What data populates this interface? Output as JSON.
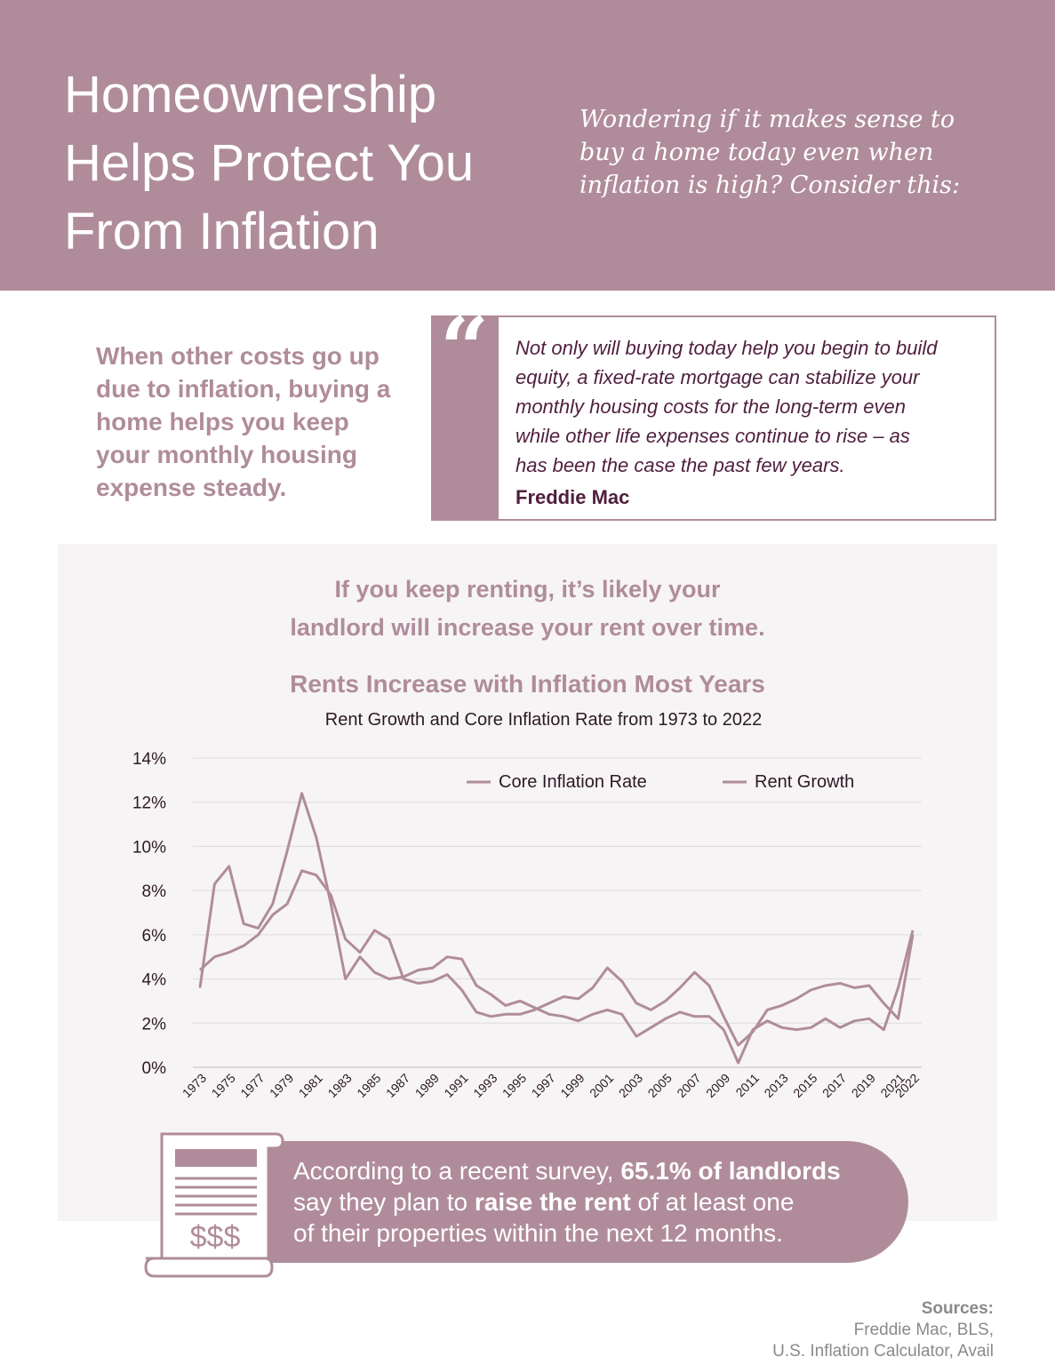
{
  "header": {
    "title_lines": [
      "Homeownership",
      "Helps Protect You",
      "From Inflation"
    ],
    "subtitle_lines": [
      "Wondering if it makes sense to",
      "buy a home today even when",
      "inflation is high? Consider this:"
    ]
  },
  "lead_lines": [
    "When other costs go up",
    "due to inflation, buying a",
    "home helps you keep",
    "your monthly housing",
    "expense steady."
  ],
  "quote": {
    "mark": "“",
    "lines": [
      "Not only will buying today help you begin to build",
      "equity, a fixed-rate mortgage can stabilize your",
      "monthly housing costs for the long-term even",
      "while other life expenses continue to rise – as",
      "has been the case the past few years."
    ],
    "source": "Freddie Mac"
  },
  "panel": {
    "heading_lines": [
      "If you keep renting, it’s likely your",
      "landlord will increase your rent over time."
    ]
  },
  "chart_data": {
    "type": "line",
    "title": "Rents Increase with Inflation Most Years",
    "subtitle": "Rent Growth and Core Inflation Rate from 1973 to 2022",
    "xlabel": "",
    "ylabel": "",
    "ylim": [
      0,
      14
    ],
    "yticks": [
      "0%",
      "2%",
      "4%",
      "6%",
      "8%",
      "10%",
      "12%",
      "14%"
    ],
    "grid": true,
    "legend_position": "top-right",
    "x": [
      1973,
      1974,
      1975,
      1976,
      1977,
      1978,
      1979,
      1980,
      1981,
      1982,
      1983,
      1984,
      1985,
      1986,
      1987,
      1988,
      1989,
      1990,
      1991,
      1992,
      1993,
      1994,
      1995,
      1996,
      1997,
      1998,
      1999,
      2000,
      2001,
      2002,
      2003,
      2004,
      2005,
      2006,
      2007,
      2008,
      2009,
      2010,
      2011,
      2012,
      2013,
      2014,
      2015,
      2016,
      2017,
      2018,
      2019,
      2020,
      2021,
      2022
    ],
    "x_tick_labels": [
      "1973",
      "1975",
      "1977",
      "1979",
      "1981",
      "1983",
      "1985",
      "1987",
      "1989",
      "1991",
      "1993",
      "1995",
      "1997",
      "1999",
      "2001",
      "2003",
      "2005",
      "2007",
      "2009",
      "2011",
      "2013",
      "2015",
      "2017",
      "2019",
      "2021",
      "2022"
    ],
    "series": [
      {
        "name": "Core Inflation Rate",
        "color": "#b08c9b",
        "values": [
          3.6,
          8.3,
          9.1,
          6.5,
          6.3,
          7.4,
          9.8,
          12.4,
          10.4,
          7.4,
          4.0,
          5.0,
          4.3,
          4.0,
          4.1,
          4.4,
          4.5,
          5.0,
          4.9,
          3.7,
          3.3,
          2.8,
          3.0,
          2.7,
          2.4,
          2.3,
          2.1,
          2.4,
          2.6,
          2.4,
          1.4,
          1.8,
          2.2,
          2.5,
          2.3,
          2.3,
          1.7,
          0.2,
          1.7,
          2.1,
          1.8,
          1.7,
          1.8,
          2.2,
          1.8,
          2.1,
          2.2,
          1.7,
          3.6,
          6.2
        ]
      },
      {
        "name": "Rent Growth",
        "color": "#b08c9b",
        "values": [
          4.4,
          5.0,
          5.2,
          5.5,
          6.0,
          6.9,
          7.4,
          8.9,
          8.7,
          7.8,
          5.8,
          5.2,
          6.2,
          5.8,
          4.0,
          3.8,
          3.9,
          4.2,
          3.5,
          2.5,
          2.3,
          2.4,
          2.4,
          2.6,
          2.9,
          3.2,
          3.1,
          3.6,
          4.5,
          3.9,
          2.9,
          2.6,
          3.0,
          3.6,
          4.3,
          3.7,
          2.3,
          1.0,
          1.6,
          2.6,
          2.8,
          3.1,
          3.5,
          3.7,
          3.8,
          3.6,
          3.7,
          2.9,
          2.2,
          6.0
        ]
      }
    ]
  },
  "callout": {
    "line1_pre": "According to a recent survey, ",
    "line1_bold": "65.1% of landlords",
    "line2_pre": "say they plan to ",
    "line2_bold": "raise the rent",
    "line2_post": " of at least one",
    "line3": "of their properties within the next 12 months.",
    "scroll_label": "$$$"
  },
  "sources": {
    "label": "Sources:",
    "line1": " Freddie Mac, BLS,",
    "line2": "U.S. Inflation Calculator, Avail"
  },
  "colors": {
    "brand": "#b08c9b",
    "quote_text": "#4f1f3d",
    "panel_bg": "#f7f4f5"
  }
}
